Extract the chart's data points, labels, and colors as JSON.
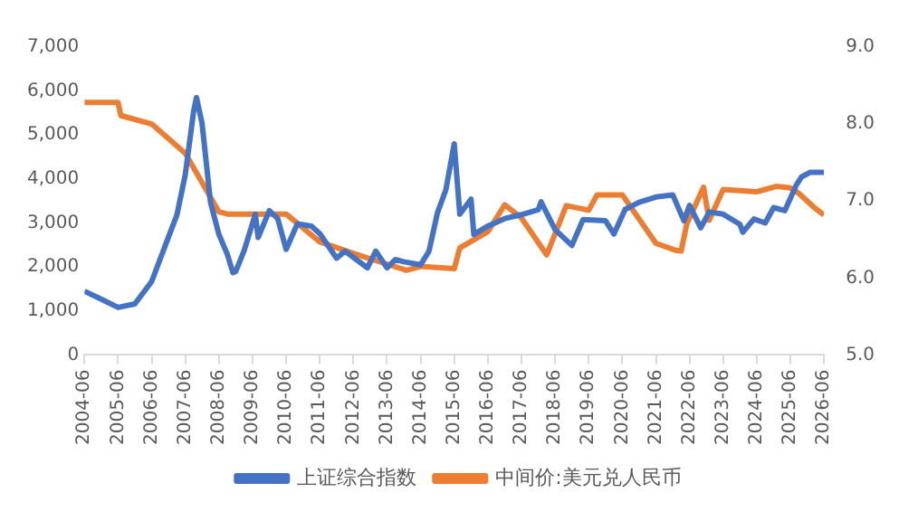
{
  "chart_data": {
    "type": "line",
    "xlim": [
      "2004-06",
      "2026-06"
    ],
    "xticks": [
      "2004-06",
      "2005-06",
      "2006-06",
      "2007-06",
      "2008-06",
      "2009-06",
      "2010-06",
      "2011-06",
      "2012-06",
      "2013-06",
      "2014-06",
      "2015-06",
      "2016-06",
      "2017-06",
      "2018-06",
      "2019-06",
      "2020-06",
      "2021-06",
      "2022-06",
      "2023-06",
      "2024-06",
      "2025-06",
      "2026-06"
    ],
    "ylim": [
      0,
      7000
    ],
    "yticks": [
      {
        "value": 0,
        "label": "0"
      },
      {
        "value": 1000,
        "label": "1,000"
      },
      {
        "value": 2000,
        "label": "2,000"
      },
      {
        "value": 3000,
        "label": "3,000"
      },
      {
        "value": 4000,
        "label": "4,000"
      },
      {
        "value": 5000,
        "label": "5,000"
      },
      {
        "value": 6000,
        "label": "6,000"
      },
      {
        "value": 7000,
        "label": "7,000"
      }
    ],
    "y2lim": [
      5,
      9
    ],
    "y2ticks": [
      {
        "value": 5,
        "label": "5.0"
      },
      {
        "value": 6,
        "label": "6.0"
      },
      {
        "value": 7,
        "label": "7.0"
      },
      {
        "value": 8,
        "label": "8.0"
      },
      {
        "value": 9,
        "label": "9.0"
      }
    ],
    "grid": false,
    "legend": "bottom",
    "marker": "none",
    "series": [
      {
        "name": "上证综合指数",
        "color": "#4472c4",
        "x": [
          "2004-06",
          "2004-12",
          "2005-06",
          "2005-12",
          "2006-06",
          "2006-12",
          "2007-03",
          "2007-06",
          "2007-09",
          "2007-10",
          "2007-12",
          "2008-03",
          "2008-06",
          "2008-09",
          "2008-11",
          "2008-12",
          "2009-03",
          "2009-07",
          "2009-08",
          "2009-12",
          "2010-03",
          "2010-06",
          "2010-10",
          "2011-03",
          "2011-06",
          "2011-12",
          "2012-03",
          "2012-06",
          "2012-11",
          "2013-02",
          "2013-06",
          "2013-09",
          "2013-12",
          "2014-06",
          "2014-09",
          "2014-12",
          "2015-03",
          "2015-06",
          "2015-08",
          "2015-12",
          "2016-01",
          "2016-06",
          "2016-12",
          "2017-06",
          "2017-12",
          "2018-01",
          "2018-06",
          "2018-12",
          "2019-04",
          "2019-12",
          "2020-03",
          "2020-07",
          "2020-12",
          "2021-06",
          "2021-12",
          "2022-04",
          "2022-06",
          "2022-10",
          "2023-01",
          "2023-06",
          "2023-12",
          "2024-01",
          "2024-05",
          "2024-09",
          "2024-12",
          "2025-04",
          "2025-08",
          "2025-10",
          "2026-01",
          "2026-06"
        ],
        "values": [
          1450,
          1270,
          1080,
          1160,
          1670,
          2680,
          3180,
          4100,
          5550,
          5850,
          5260,
          3470,
          2740,
          2290,
          1870,
          1900,
          2370,
          3200,
          2670,
          3280,
          3100,
          2400,
          2980,
          2930,
          2760,
          2200,
          2360,
          2220,
          1980,
          2360,
          1980,
          2170,
          2120,
          2050,
          2360,
          3230,
          3750,
          4800,
          3200,
          3540,
          2740,
          2930,
          3100,
          3190,
          3300,
          3480,
          2850,
          2490,
          3080,
          3050,
          2750,
          3310,
          3470,
          3590,
          3640,
          3050,
          3400,
          2890,
          3250,
          3200,
          2970,
          2790,
          3090,
          3000,
          3350,
          3280,
          3850,
          4050,
          4150,
          4150
        ]
      },
      {
        "name": "中间价:美元兑人民币",
        "color": "#ed7d31",
        "axis": "y2",
        "x": [
          "2004-06",
          "2005-06",
          "2005-07",
          "2006-06",
          "2007-06",
          "2008-06",
          "2008-09",
          "2010-06",
          "2011-06",
          "2012-06",
          "2013-06",
          "2014-01",
          "2014-06",
          "2015-06",
          "2015-08",
          "2016-06",
          "2016-12",
          "2017-06",
          "2018-03",
          "2018-10",
          "2019-06",
          "2019-09",
          "2020-06",
          "2021-06",
          "2022-01",
          "2022-03",
          "2022-05",
          "2022-11",
          "2023-01",
          "2023-06",
          "2024-06",
          "2025-01",
          "2025-06",
          "2025-09",
          "2026-03",
          "2026-06"
        ],
        "values": [
          8.28,
          8.28,
          8.11,
          8.0,
          7.62,
          6.86,
          6.83,
          6.83,
          6.47,
          6.32,
          6.18,
          6.1,
          6.15,
          6.12,
          6.39,
          6.6,
          6.95,
          6.78,
          6.3,
          6.94,
          6.88,
          7.08,
          7.08,
          6.45,
          6.36,
          6.35,
          6.7,
          7.18,
          6.75,
          7.15,
          7.12,
          7.19,
          7.17,
          7.1,
          6.9,
          6.82
        ]
      }
    ]
  }
}
